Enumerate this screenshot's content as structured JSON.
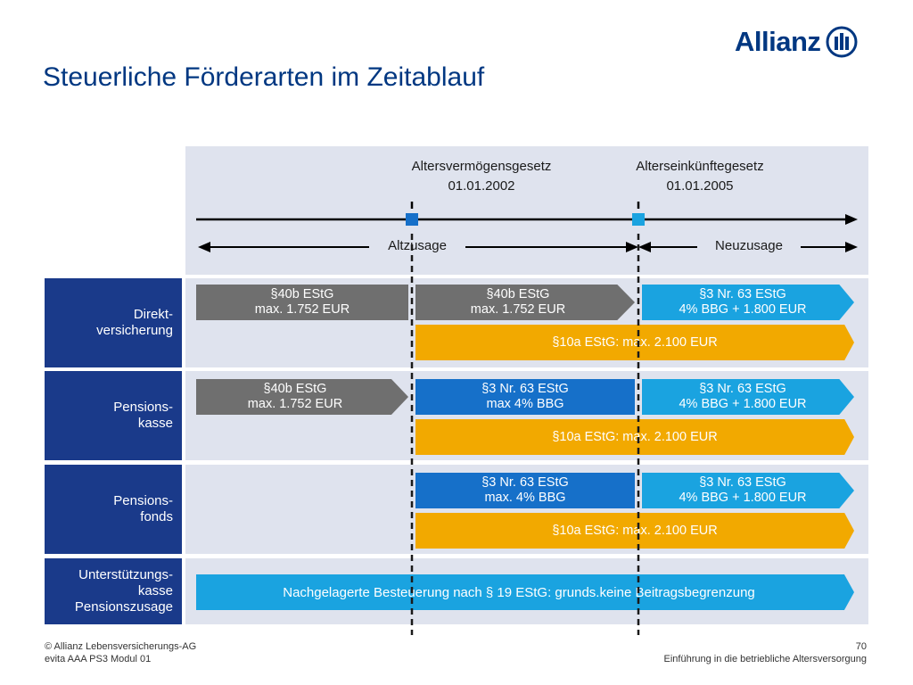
{
  "header": {
    "title": "Steuerliche Förderarten im Zeitablauf",
    "logo_text": "Allianz"
  },
  "timeline": {
    "milestone1": {
      "name": "Altersvermögensgesetz",
      "date": "01.01.2002"
    },
    "milestone2": {
      "name": "Alterseinkünftegesetz",
      "date": "01.01.2005"
    },
    "period1_label": "Altzusage",
    "period2_label": "Neuzusage"
  },
  "rows": {
    "direktversicherung": {
      "label": "Direkt-\nversicherung",
      "bar1_line1": "§40b EStG",
      "bar1_line2": "max. 1.752 EUR",
      "bar2_line1": "§40b EStG",
      "bar2_line2": "max. 1.752 EUR",
      "bar3_line1": "§3 Nr. 63 EStG",
      "bar3_line2": "4% BBG + 1.800 EUR",
      "bar4": "§10a EStG: max. 2.100 EUR"
    },
    "pensionskasse": {
      "label": "Pensions-\nkasse",
      "bar1_line1": "§40b EStG",
      "bar1_line2": "max. 1.752 EUR",
      "bar2_line1": "§3 Nr. 63 EStG",
      "bar2_line2": "max 4% BBG",
      "bar3_line1": "§3 Nr. 63 EStG",
      "bar3_line2": "4% BBG + 1.800 EUR",
      "bar4": "§10a EStG: max. 2.100 EUR"
    },
    "pensionsfonds": {
      "label": "Pensions-\nfonds",
      "bar2_line1": "§3 Nr. 63 EStG",
      "bar2_line2": "max. 4% BBG",
      "bar3_line1": "§3 Nr. 63 EStG",
      "bar3_line2": "4% BBG + 1.800 EUR",
      "bar4": "§10a EStG: max. 2.100 EUR"
    },
    "unterstuetzungskasse": {
      "label": "Unterstützungs-\nkasse\nPensionszusage",
      "bar": "Nachgelagerte Besteuerung nach § 19 EStG: grunds.keine Beitragsbegrenzung"
    }
  },
  "footer": {
    "copyright": "© Allianz Lebensversicherungs-AG",
    "module": "evita AAA PS3 Modul 01",
    "page_number": "70",
    "topic": "Einführung in die betriebliche Altersversorgung"
  },
  "colors": {
    "brand_blue": "#003781",
    "label_navy": "#1a3a8a",
    "panel_gray": "#dfe3ee",
    "bar_gray": "#6f6f6f",
    "bar_blue": "#1670c9",
    "bar_cyan": "#1aa3e0",
    "bar_orange": "#f2a900"
  }
}
